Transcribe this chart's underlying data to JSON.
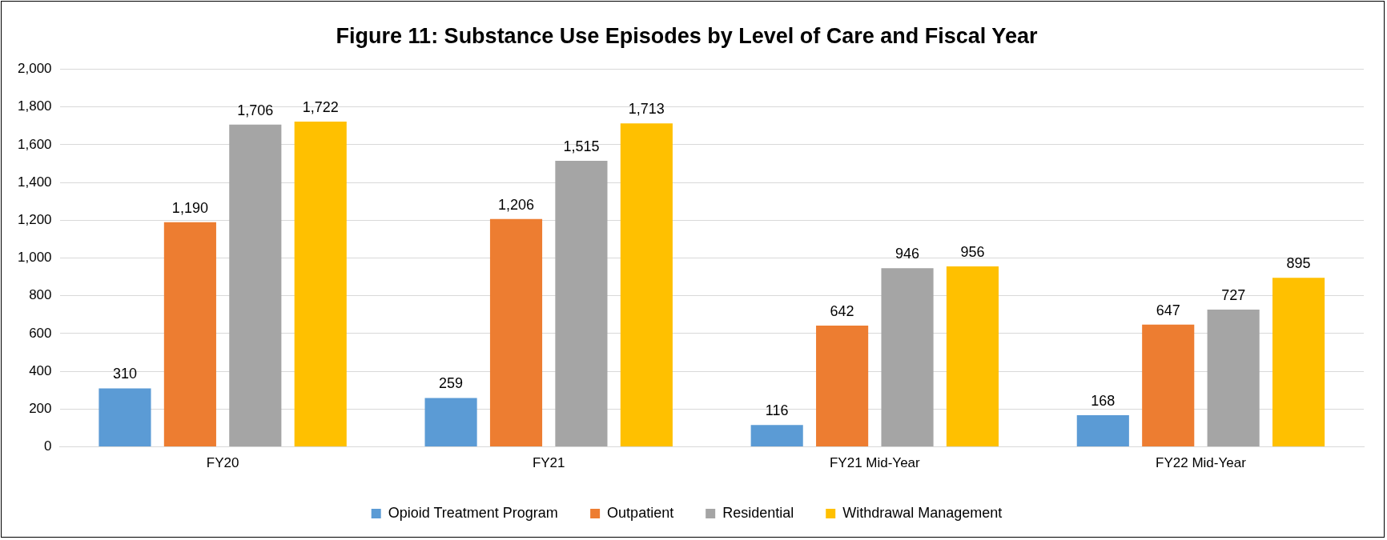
{
  "chart_data": {
    "type": "bar",
    "title": "Figure 11: Substance Use Episodes by Level of Care and Fiscal Year",
    "categories": [
      "FY20",
      "FY21",
      "FY21 Mid-Year",
      "FY22 Mid-Year"
    ],
    "series": [
      {
        "name": "Opioid Treatment Program",
        "color": "#5b9bd5",
        "values": [
          310,
          259,
          116,
          168
        ],
        "value_labels": [
          "310",
          "259",
          "116",
          "168"
        ]
      },
      {
        "name": "Outpatient",
        "color": "#ed7d31",
        "values": [
          1190,
          1206,
          642,
          647
        ],
        "value_labels": [
          "1,190",
          "1,206",
          "642",
          "647"
        ]
      },
      {
        "name": "Residential",
        "color": "#a5a5a5",
        "values": [
          1706,
          1515,
          946,
          727
        ],
        "value_labels": [
          "1,706",
          "1,515",
          "946",
          "727"
        ]
      },
      {
        "name": "Withdrawal Management",
        "color": "#ffc000",
        "values": [
          1722,
          1713,
          956,
          895
        ],
        "value_labels": [
          "1,722",
          "1,713",
          "956",
          "895"
        ]
      }
    ],
    "ylim": [
      0,
      2000
    ],
    "yticks": [
      0,
      200,
      400,
      600,
      800,
      {
        "value": 1000,
        "label": "1,000"
      },
      {
        "value": 1200,
        "label": "1,200"
      },
      {
        "value": 1400,
        "label": "1,400"
      },
      {
        "value": 1600,
        "label": "1,600"
      },
      {
        "value": 1800,
        "label": "1,800"
      },
      {
        "value": 2000,
        "label": "2,000"
      }
    ],
    "grid": "y",
    "legend": "bottom"
  }
}
